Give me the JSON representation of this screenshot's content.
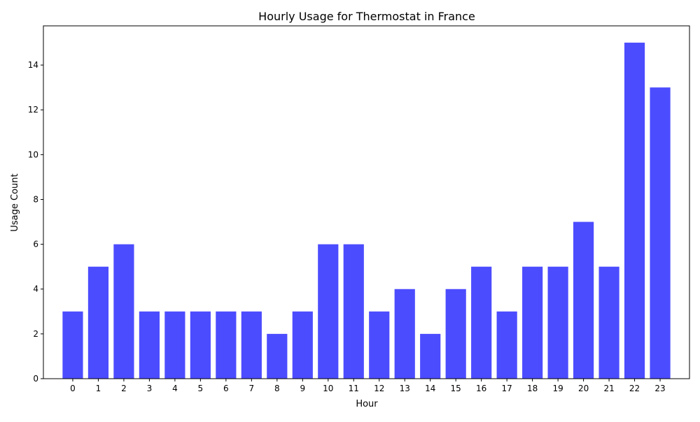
{
  "chart_data": {
    "type": "bar",
    "title": "Hourly Usage for Thermostat in France",
    "xlabel": "Hour",
    "ylabel": "Usage Count",
    "categories": [
      "0",
      "1",
      "2",
      "3",
      "4",
      "5",
      "6",
      "7",
      "8",
      "9",
      "10",
      "11",
      "12",
      "13",
      "14",
      "15",
      "16",
      "17",
      "18",
      "19",
      "20",
      "21",
      "22",
      "23"
    ],
    "values": [
      3,
      5,
      6,
      3,
      3,
      3,
      3,
      3,
      2,
      3,
      6,
      6,
      3,
      4,
      2,
      4,
      5,
      3,
      5,
      5,
      7,
      5,
      15,
      13
    ],
    "yticks": [
      0,
      2,
      4,
      6,
      8,
      10,
      12,
      14
    ],
    "ylim": [
      0,
      15.75
    ],
    "grid": false,
    "legend": "none",
    "bar_color": "#4c4cff"
  }
}
